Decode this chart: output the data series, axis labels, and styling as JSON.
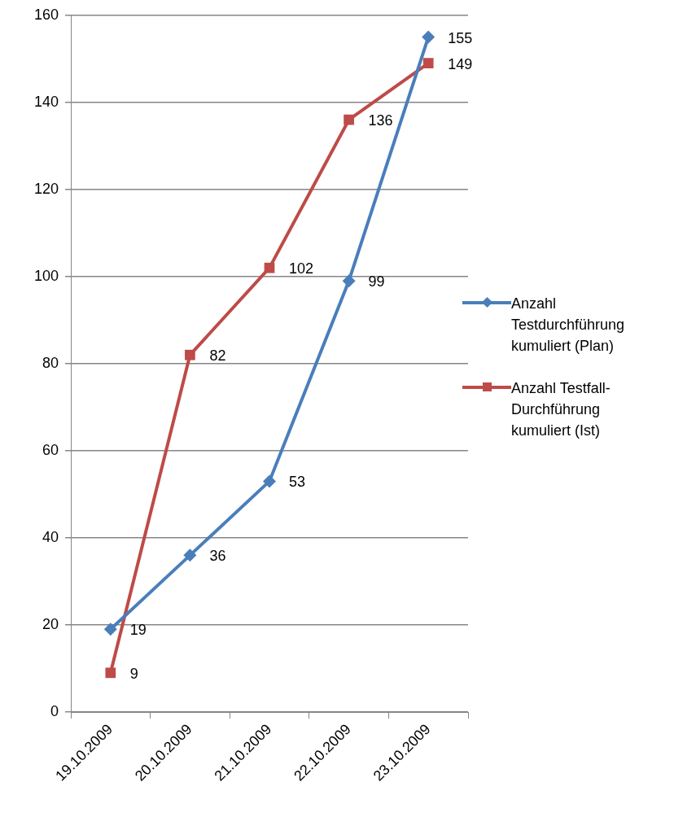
{
  "chart_data": {
    "type": "line",
    "categories": [
      "19.10.2009",
      "20.10.2009",
      "21.10.2009",
      "22.10.2009",
      "23.10.2009"
    ],
    "series": [
      {
        "name": "Anzahl Testdurchführung kumuliert (Plan)",
        "color": "#4a7ebb",
        "marker": "diamond",
        "values": [
          19,
          36,
          53,
          99,
          155
        ]
      },
      {
        "name": "Anzahl Testfall-Durchführung kumuliert (Ist)",
        "color": "#be4b48",
        "marker": "square",
        "values": [
          9,
          82,
          102,
          136,
          149
        ]
      }
    ],
    "ylim": [
      0,
      160
    ],
    "yticks": [
      0,
      20,
      40,
      60,
      80,
      100,
      120,
      140,
      160
    ],
    "grid": "y",
    "legend": "right",
    "data_labels": true
  }
}
